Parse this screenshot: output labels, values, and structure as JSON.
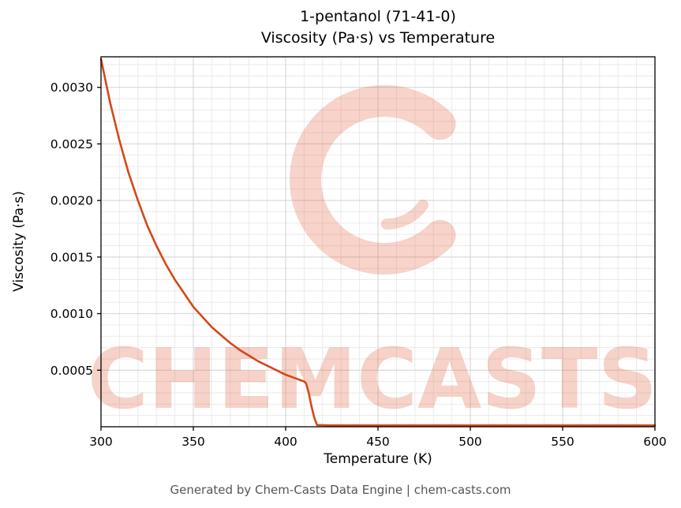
{
  "title": {
    "line1": "1-pentanol (71-41-0)",
    "line2": "Viscosity (Pa·s) vs Temperature"
  },
  "footer_text": "Generated by Chem-Casts Data Engine | chem-casts.com",
  "watermark": {
    "text": "CHEMCASTS",
    "logo": "brush-ring-c"
  },
  "colors": {
    "line": "#d2491b",
    "watermark": "#e05d38",
    "grid_major": "#d2d2d2",
    "grid_minor": "#eaeaea",
    "axis": "#000000",
    "footer_text": "#555555"
  },
  "chart_data": {
    "type": "line",
    "title": "1-pentanol (71-41-0) — Viscosity (Pa·s) vs Temperature",
    "xlabel": "Temperature (K)",
    "ylabel": "Viscosity (Pa·s)",
    "xlim": [
      300,
      600
    ],
    "ylim": [
      0,
      0.00327
    ],
    "xticks": [
      300,
      350,
      400,
      450,
      500,
      550,
      600
    ],
    "xtick_labels": [
      "300",
      "350",
      "400",
      "450",
      "500",
      "550",
      "600"
    ],
    "yticks": [
      0.0005,
      0.001,
      0.0015,
      0.002,
      0.0025,
      0.003
    ],
    "ytick_labels": [
      "0.0005",
      "0.0010",
      "0.0015",
      "0.0020",
      "0.0025",
      "0.0030"
    ],
    "x_minor_step": 10,
    "y_minor_step": 0.0001,
    "grid": true,
    "legend": "none",
    "series": [
      {
        "name": "viscosity",
        "x": [
          300,
          305,
          310,
          315,
          320,
          325,
          330,
          335,
          340,
          345,
          350,
          355,
          360,
          365,
          370,
          375,
          380,
          385,
          390,
          395,
          400,
          405,
          410,
          411,
          412.5,
          414,
          415.5,
          417,
          425,
          450,
          475,
          500,
          525,
          550,
          575,
          600
        ],
        "y": [
          0.00325,
          0.00286,
          0.00253,
          0.00224,
          0.002,
          0.00178,
          0.0016,
          0.00144,
          0.0013,
          0.00118,
          0.00106,
          0.00097,
          0.00088,
          0.00081,
          0.00074,
          0.00068,
          0.00063,
          0.00058,
          0.00054,
          0.0005,
          0.00046,
          0.00043,
          0.0004,
          0.000385,
          0.0003,
          0.00018,
          8e-05,
          1.5e-05,
          1.2e-05,
          1.2e-05,
          1.2e-05,
          1.2e-05,
          1.2e-05,
          1.2e-05,
          1.2e-05,
          1.2e-05
        ]
      }
    ]
  }
}
